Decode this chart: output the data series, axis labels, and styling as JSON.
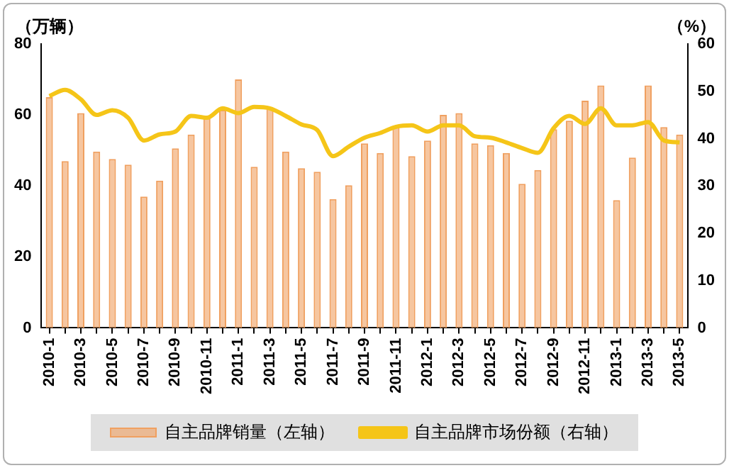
{
  "chart_data": {
    "type": "bar",
    "ylabel": "（万辆）",
    "y2label": "（%）",
    "categories": [
      "2010-1",
      null,
      "2010-3",
      null,
      "2010-5",
      null,
      "2010-7",
      null,
      "2010-9",
      null,
      "2010-11",
      null,
      "2011-1",
      null,
      "2011-3",
      null,
      "2011-5",
      null,
      "2011-7",
      null,
      "2011-9",
      null,
      "2011-11",
      null,
      "2012-1",
      null,
      "2012-3",
      null,
      "2012-5",
      null,
      "2012-7",
      null,
      "2012-9",
      null,
      "2012-11",
      null,
      "2013-1",
      null,
      "2013-3",
      null,
      "2013-5"
    ],
    "series": [
      {
        "name": "自主品牌销量（左轴）",
        "color": "#f0a060",
        "values": [
          65,
          47,
          60.5,
          49.7,
          47.6,
          46,
          37,
          41.5,
          50.6,
          54.5,
          59.7,
          61.4,
          70,
          45.4,
          62,
          49.7,
          45,
          44,
          36.3,
          40.2,
          52,
          49.3,
          57,
          48.4,
          52.8,
          60,
          60.5,
          52,
          51.5,
          49.3,
          40.6,
          44.5,
          56,
          58.4,
          64,
          68.3,
          36,
          48,
          68.3,
          56.6,
          54.5
        ]
      },
      {
        "name": "自主品牌市场份额（右轴）",
        "type": "line",
        "axis": "y2",
        "color": "#f5c518",
        "values": [
          49,
          50.3,
          48.3,
          45,
          46,
          44.4,
          39.6,
          40.9,
          41.5,
          44.8,
          44.4,
          46.4,
          45.4,
          46.7,
          46.4,
          44.8,
          43,
          41.8,
          36.3,
          38.3,
          40.2,
          41.2,
          42.5,
          42.8,
          41.5,
          42.8,
          42.8,
          40.5,
          40.2,
          39.2,
          38,
          37,
          42.2,
          44.8,
          43.1,
          46.4,
          42.8,
          42.8,
          43.5,
          39.6,
          39.2
        ]
      }
    ],
    "ylim": [
      0,
      80
    ],
    "yticks": [
      0,
      20,
      40,
      60,
      80
    ],
    "y2lim": [
      0,
      60
    ],
    "y2ticks": [
      0,
      10,
      20,
      30,
      40,
      50,
      60
    ],
    "grid": false,
    "legend": "bottom",
    "marker": "none",
    "line_style": "solid"
  }
}
